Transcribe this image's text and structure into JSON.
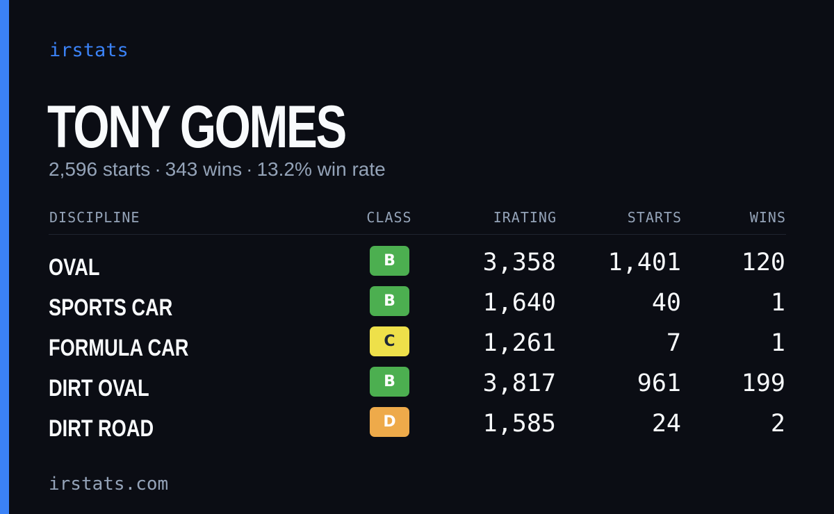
{
  "brand": "irstats",
  "player": {
    "name": "TONY GOMES",
    "starts_text": "2,596 starts",
    "wins_text": "343 wins",
    "win_rate_text": "13.2% win rate",
    "separator": "·"
  },
  "table": {
    "headers": {
      "discipline": "DISCIPLINE",
      "class": "CLASS",
      "irating": "IRATING",
      "starts": "STARTS",
      "wins": "WINS"
    },
    "rows": [
      {
        "discipline": "OVAL",
        "class": "B",
        "class_color": "#4caf50",
        "irating": "3,358",
        "starts": "1,401",
        "wins": "120"
      },
      {
        "discipline": "SPORTS CAR",
        "class": "B",
        "class_color": "#4caf50",
        "irating": "1,640",
        "starts": "40",
        "wins": "1"
      },
      {
        "discipline": "FORMULA CAR",
        "class": "C",
        "class_color": "#eee04a",
        "irating": "1,261",
        "starts": "7",
        "wins": "1"
      },
      {
        "discipline": "DIRT OVAL",
        "class": "B",
        "class_color": "#4caf50",
        "irating": "3,817",
        "starts": "961",
        "wins": "199"
      },
      {
        "discipline": "DIRT ROAD",
        "class": "D",
        "class_color": "#eeaa4a",
        "irating": "1,585",
        "starts": "24",
        "wins": "2"
      }
    ]
  },
  "footer": "irstats.com",
  "colors": {
    "background": "#0b0d14",
    "accent": "#3b82f6",
    "text_primary": "#f8fafc",
    "text_muted": "#94a3b8"
  }
}
